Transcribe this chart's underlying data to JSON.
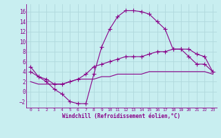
{
  "xlabel": "Windchill (Refroidissement éolien,°C)",
  "background_color": "#c8eef0",
  "grid_color": "#b0d8dc",
  "line_color": "#880088",
  "xlim": [
    -0.5,
    23.5
  ],
  "ylim": [
    -3.2,
    17.5
  ],
  "xticks": [
    0,
    1,
    2,
    3,
    4,
    5,
    6,
    7,
    8,
    9,
    10,
    11,
    12,
    13,
    14,
    15,
    16,
    17,
    18,
    19,
    20,
    21,
    22,
    23
  ],
  "yticks": [
    -2,
    0,
    2,
    4,
    6,
    8,
    10,
    12,
    14,
    16
  ],
  "curve1_x": [
    0,
    1,
    2,
    3,
    4,
    5,
    6,
    7,
    8,
    9,
    10,
    11,
    12,
    13,
    14,
    15,
    16,
    17,
    18,
    19,
    20,
    21,
    22,
    23
  ],
  "curve1_y": [
    5,
    3,
    2,
    0.5,
    -0.5,
    -2.0,
    -2.4,
    -2.4,
    3.5,
    9.0,
    12.5,
    15.0,
    16.2,
    16.2,
    16.0,
    15.5,
    14.0,
    12.5,
    8.5,
    8.5,
    7.0,
    5.5,
    5.5,
    4.0
  ],
  "curve2_x": [
    0,
    1,
    2,
    3,
    4,
    5,
    6,
    7,
    8,
    9,
    10,
    11,
    12,
    13,
    14,
    15,
    16,
    17,
    18,
    19,
    20,
    21,
    22,
    23
  ],
  "curve2_y": [
    4.0,
    3.0,
    2.5,
    1.5,
    1.5,
    2.0,
    2.5,
    3.5,
    5.0,
    5.5,
    6.0,
    6.5,
    7.0,
    7.0,
    7.0,
    7.5,
    8.0,
    8.0,
    8.5,
    8.5,
    8.5,
    7.5,
    7.0,
    4.0
  ],
  "curve3_x": [
    0,
    1,
    2,
    3,
    4,
    5,
    6,
    7,
    8,
    9,
    10,
    11,
    12,
    13,
    14,
    15,
    16,
    17,
    18,
    19,
    20,
    21,
    22,
    23
  ],
  "curve3_y": [
    2.0,
    1.5,
    1.5,
    1.5,
    1.5,
    2.0,
    2.5,
    2.5,
    2.5,
    3.0,
    3.0,
    3.5,
    3.5,
    3.5,
    3.5,
    4.0,
    4.0,
    4.0,
    4.0,
    4.0,
    4.0,
    4.0,
    4.0,
    3.5
  ]
}
